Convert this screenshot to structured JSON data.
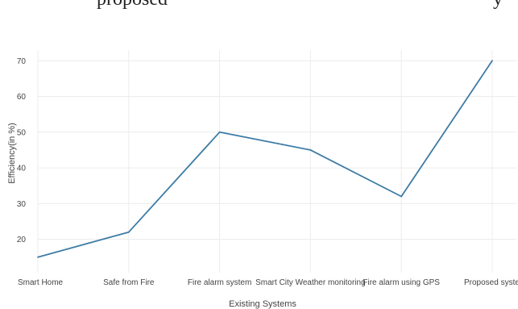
{
  "caption_fragment": {
    "left": "proposed",
    "right": "y"
  },
  "chart_data": {
    "type": "line",
    "categories": [
      "Smart Home",
      "Safe from Fire",
      "Fire alarm system",
      "Smart City Weather monitoring",
      "Fire alarm using GPS",
      "Proposed system"
    ],
    "series": [
      {
        "values": [
          15,
          22,
          50,
          45,
          32,
          70
        ]
      }
    ],
    "title": "",
    "xlabel": "Existing Systems",
    "ylabel": "Efficiency(in %)",
    "ylim": [
      12,
      73
    ],
    "yticks": [
      20,
      30,
      40,
      50,
      60,
      70
    ],
    "grid": true,
    "line_color": "#3d7ca6"
  }
}
